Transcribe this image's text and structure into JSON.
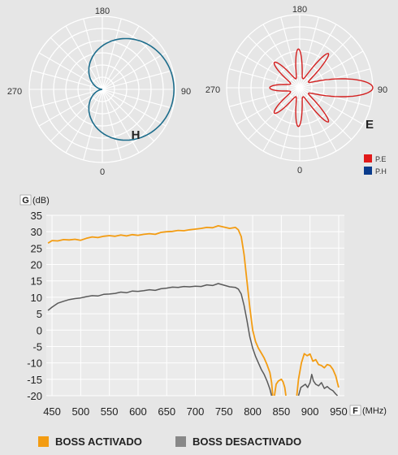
{
  "polar": {
    "angle_labels": {
      "top": "180",
      "bottom": "0",
      "left": "270",
      "right": "90"
    },
    "left_letter": "H",
    "right_letter": "E",
    "legend": [
      {
        "label": "P.E",
        "color": "#e11a1a"
      },
      {
        "label": "P.H",
        "color": "#0a3b8c"
      }
    ],
    "h_color": "#1d6d8c",
    "e_color": "#d42020"
  },
  "axis_labels": {
    "y_box": "G",
    "y_unit": "(dB)",
    "x_box": "F",
    "x_unit": "(MHz)"
  },
  "legend": [
    {
      "label": "BOSS ACTIVADO",
      "color": "#f39c12"
    },
    {
      "label": "BOSS DESACTIVADO",
      "color": "#888888"
    }
  ],
  "chart_data": {
    "type": "line",
    "title": "",
    "xlabel": "F (MHz)",
    "ylabel": "G (dB)",
    "xlim": [
      440,
      960
    ],
    "ylim": [
      -20,
      35
    ],
    "x_ticks": [
      450,
      500,
      550,
      600,
      650,
      700,
      750,
      800,
      850,
      900,
      950
    ],
    "y_ticks": [
      35,
      30,
      25,
      20,
      15,
      10,
      5,
      0,
      -5,
      -10,
      -15,
      -20
    ],
    "grid": true,
    "series": [
      {
        "name": "BOSS ACTIVADO",
        "color": "#f39c12",
        "segments": [
          [
            [
              443,
              26.5
            ],
            [
              450,
              27.3
            ],
            [
              460,
              27.2
            ],
            [
              470,
              27.6
            ],
            [
              480,
              27.5
            ],
            [
              490,
              27.7
            ],
            [
              500,
              27.4
            ],
            [
              510,
              28.0
            ],
            [
              520,
              28.4
            ],
            [
              530,
              28.2
            ],
            [
              540,
              28.6
            ],
            [
              550,
              28.8
            ],
            [
              560,
              28.6
            ],
            [
              570,
              29.0
            ],
            [
              580,
              28.7
            ],
            [
              590,
              29.1
            ],
            [
              600,
              28.9
            ],
            [
              610,
              29.2
            ],
            [
              620,
              29.4
            ],
            [
              630,
              29.2
            ],
            [
              640,
              29.8
            ],
            [
              650,
              30.0
            ],
            [
              660,
              30.1
            ],
            [
              670,
              30.4
            ],
            [
              680,
              30.3
            ],
            [
              690,
              30.6
            ],
            [
              700,
              30.8
            ],
            [
              710,
              31.0
            ],
            [
              720,
              31.3
            ],
            [
              730,
              31.2
            ],
            [
              740,
              31.8
            ],
            [
              750,
              31.4
            ],
            [
              760,
              31.0
            ],
            [
              770,
              31.3
            ],
            [
              775,
              30.6
            ],
            [
              780,
              28.5
            ],
            [
              785,
              23.0
            ],
            [
              790,
              15.0
            ],
            [
              795,
              7.0
            ],
            [
              800,
              0.0
            ],
            [
              805,
              -3.5
            ],
            [
              810,
              -5.5
            ],
            [
              815,
              -7.0
            ],
            [
              820,
              -8.5
            ],
            [
              825,
              -10.5
            ],
            [
              830,
              -13.0
            ],
            [
              833,
              -16.0
            ],
            [
              835,
              -20.0
            ]
          ],
          [
            [
              838,
              -20.0
            ],
            [
              841,
              -16.5
            ],
            [
              845,
              -15.5
            ],
            [
              850,
              -15.0
            ],
            [
              853,
              -15.8
            ],
            [
              856,
              -17.5
            ],
            [
              858,
              -20.0
            ]
          ],
          [
            [
              877,
              -20.0
            ],
            [
              880,
              -15.0
            ],
            [
              885,
              -10.0
            ],
            [
              890,
              -7.2
            ],
            [
              895,
              -7.8
            ],
            [
              900,
              -7.3
            ],
            [
              905,
              -9.5
            ],
            [
              910,
              -9.0
            ],
            [
              915,
              -10.5
            ],
            [
              920,
              -10.8
            ],
            [
              925,
              -11.5
            ],
            [
              930,
              -10.5
            ],
            [
              935,
              -10.8
            ],
            [
              940,
              -12.0
            ],
            [
              945,
              -14.0
            ],
            [
              950,
              -17.5
            ]
          ]
        ]
      },
      {
        "name": "BOSS DESACTIVADO",
        "color": "#5a5a5a",
        "segments": [
          [
            [
              443,
              6.0
            ],
            [
              450,
              7.0
            ],
            [
              460,
              8.2
            ],
            [
              470,
              8.8
            ],
            [
              480,
              9.3
            ],
            [
              490,
              9.6
            ],
            [
              500,
              9.8
            ],
            [
              510,
              10.2
            ],
            [
              520,
              10.5
            ],
            [
              530,
              10.4
            ],
            [
              540,
              10.9
            ],
            [
              550,
              11.0
            ],
            [
              560,
              11.2
            ],
            [
              570,
              11.6
            ],
            [
              580,
              11.4
            ],
            [
              590,
              11.9
            ],
            [
              600,
              11.8
            ],
            [
              610,
              12.0
            ],
            [
              620,
              12.3
            ],
            [
              630,
              12.1
            ],
            [
              640,
              12.6
            ],
            [
              650,
              12.8
            ],
            [
              660,
              13.1
            ],
            [
              670,
              13.0
            ],
            [
              680,
              13.3
            ],
            [
              690,
              13.2
            ],
            [
              700,
              13.4
            ],
            [
              710,
              13.3
            ],
            [
              720,
              13.8
            ],
            [
              730,
              13.6
            ],
            [
              740,
              14.2
            ],
            [
              750,
              13.7
            ],
            [
              760,
              13.2
            ],
            [
              770,
              13.0
            ],
            [
              775,
              12.5
            ],
            [
              780,
              11.0
            ],
            [
              785,
              7.5
            ],
            [
              790,
              3.0
            ],
            [
              795,
              -2.0
            ],
            [
              800,
              -5.5
            ],
            [
              805,
              -8.0
            ],
            [
              810,
              -10.0
            ],
            [
              815,
              -12.0
            ],
            [
              820,
              -13.5
            ],
            [
              825,
              -15.5
            ],
            [
              830,
              -18.0
            ],
            [
              833,
              -20.0
            ]
          ],
          [
            [
              880,
              -20.0
            ],
            [
              884,
              -17.5
            ],
            [
              888,
              -17.0
            ],
            [
              892,
              -16.5
            ],
            [
              896,
              -17.5
            ],
            [
              900,
              -16.0
            ],
            [
              903,
              -13.5
            ],
            [
              906,
              -15.5
            ],
            [
              910,
              -16.5
            ],
            [
              915,
              -17.0
            ],
            [
              920,
              -16.0
            ],
            [
              925,
              -17.8
            ],
            [
              930,
              -17.2
            ],
            [
              935,
              -18.0
            ],
            [
              940,
              -18.5
            ],
            [
              945,
              -19.5
            ],
            [
              948,
              -20.0
            ]
          ]
        ]
      }
    ]
  }
}
